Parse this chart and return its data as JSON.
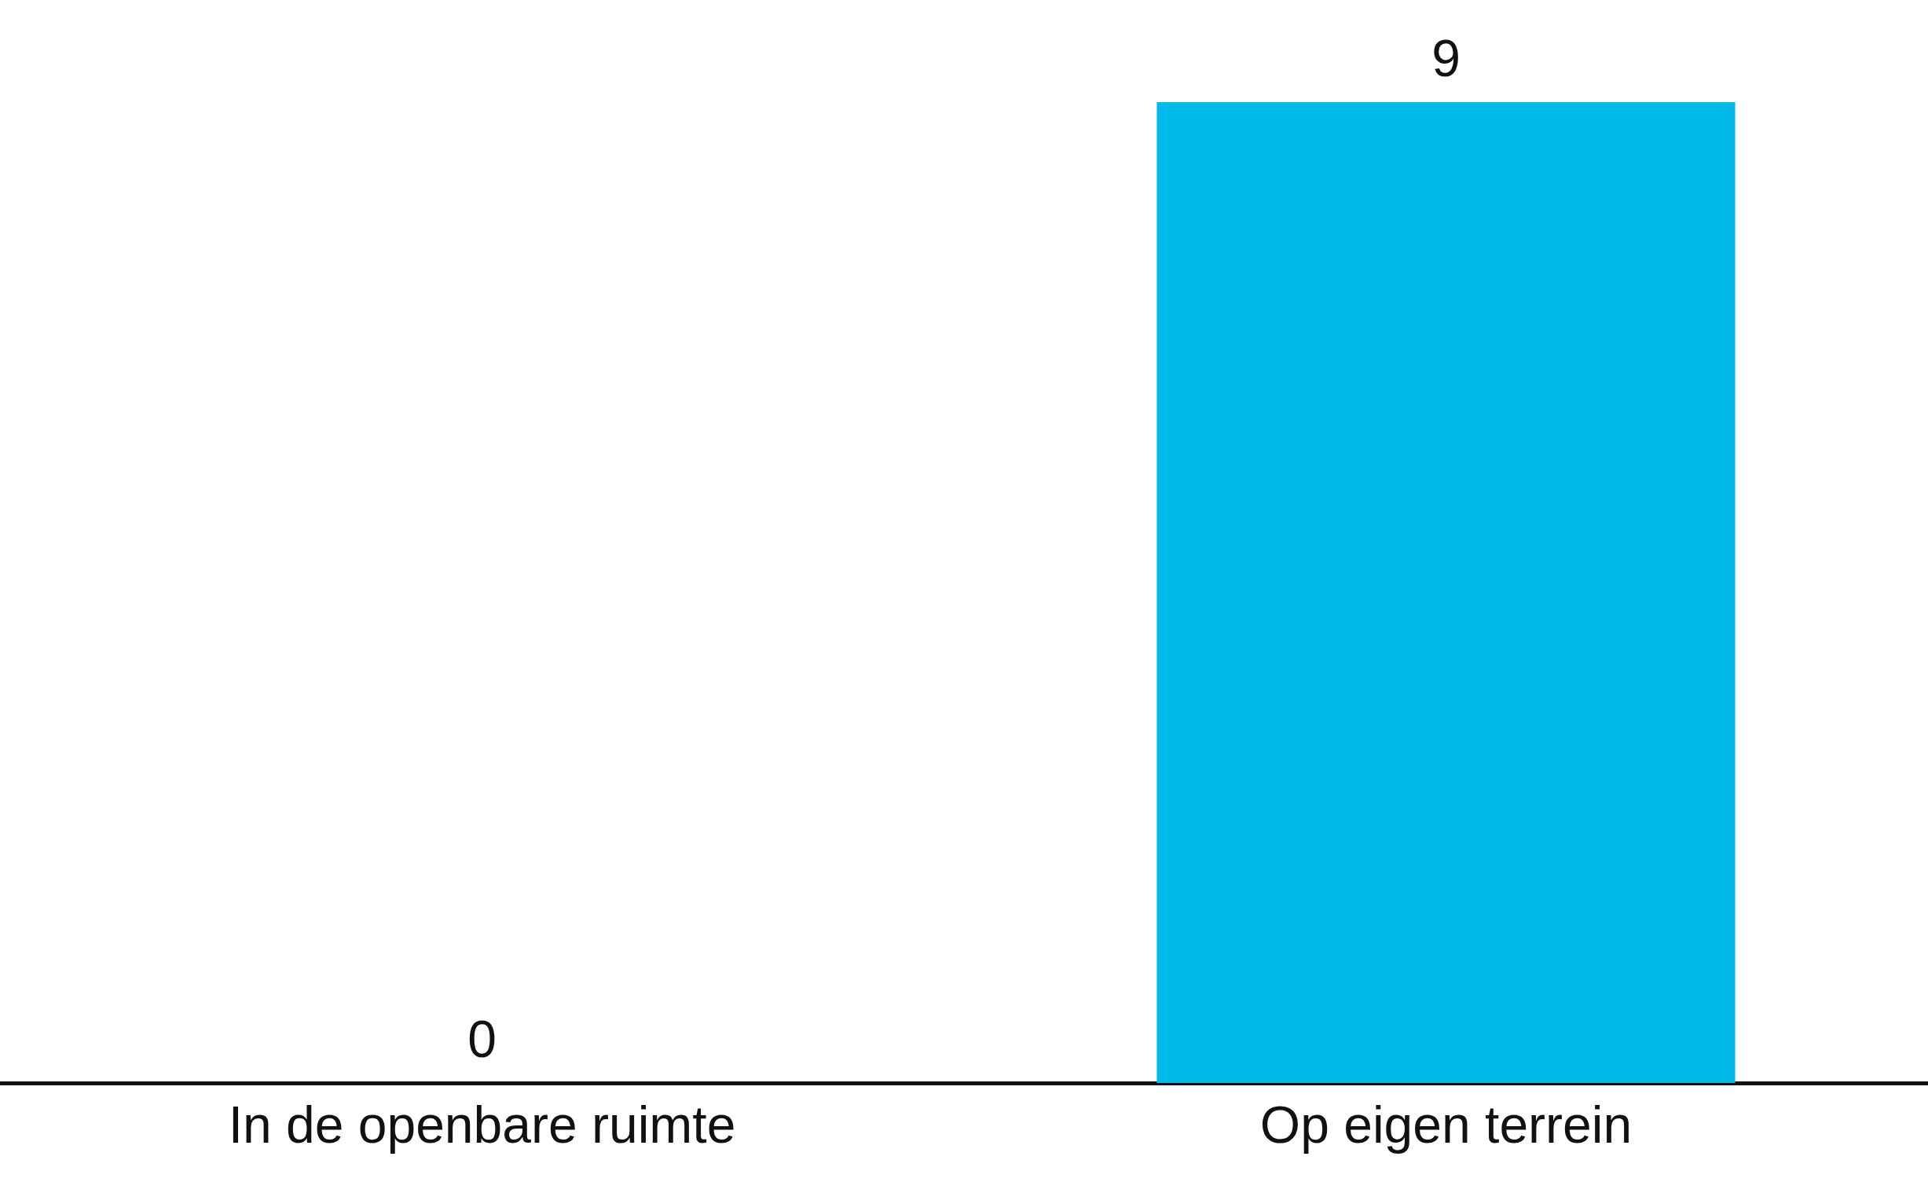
{
  "chart_data": {
    "type": "bar",
    "categories": [
      "In de openbare ruimte",
      "Op eigen terrein"
    ],
    "values": [
      0,
      9
    ],
    "color": "#00bbea",
    "data_labels": true,
    "grid": false,
    "legend": false,
    "tick_labels": "x"
  }
}
